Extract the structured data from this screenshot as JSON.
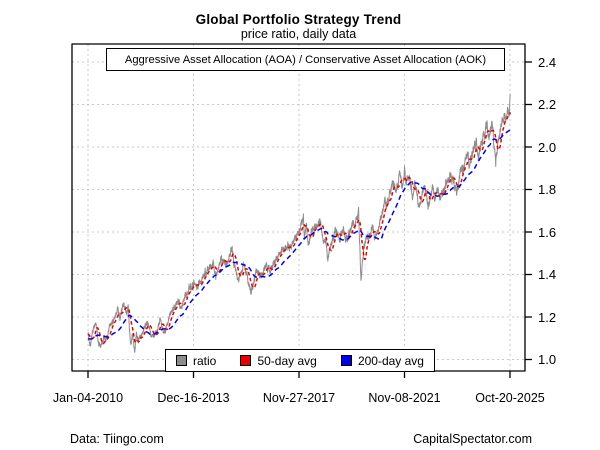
{
  "title": "Global Portfolio Strategy Trend",
  "subtitle": "price ratio, daily data",
  "series_label": "Aggressive Asset Allocation (AOA) / Conservative Asset Allocation (AOK)",
  "footer": {
    "left": "Data: Tiingo.com",
    "right": "CapitalSpectator.com"
  },
  "legend": [
    {
      "label": "ratio",
      "color": "#8c8c8c"
    },
    {
      "label": "50-day avg",
      "color": "#e60000"
    },
    {
      "label": "200-day avg",
      "color": "#0000e6"
    }
  ],
  "chart_data": {
    "type": "line",
    "title": "Global Portfolio Strategy Trend",
    "subtitle": "price ratio, daily data",
    "annotation": "Aggressive Asset Allocation (AOA) / Conservative Asset Allocation (AOK)",
    "grid": true,
    "grid_color": "#c9c9c9",
    "legend_position": "bottom",
    "x_ticks": [
      "Jan-04-2010",
      "Dec-16-2013",
      "Nov-27-2017",
      "Nov-08-2021",
      "Oct-20-2025"
    ],
    "y_ticks": [
      1.0,
      1.2,
      1.4,
      1.6,
      1.8,
      2.0,
      2.2,
      2.4
    ],
    "ylim": [
      0.93,
      2.47
    ],
    "series": [
      {
        "name": "ratio",
        "color": "#8c8c8c",
        "style": "solid-noisy",
        "anchors": [
          [
            "2010-01-04",
            1.12
          ],
          [
            "2010-01-20",
            1.09
          ],
          [
            "2010-02-08",
            1.07
          ],
          [
            "2010-03-15",
            1.13
          ],
          [
            "2010-04-23",
            1.17
          ],
          [
            "2010-05-20",
            1.09
          ],
          [
            "2010-07-02",
            1.06
          ],
          [
            "2010-08-09",
            1.11
          ],
          [
            "2010-08-31",
            1.08
          ],
          [
            "2010-11-05",
            1.17
          ],
          [
            "2010-12-31",
            1.19
          ],
          [
            "2011-02-18",
            1.24
          ],
          [
            "2011-03-16",
            1.19
          ],
          [
            "2011-04-29",
            1.26
          ],
          [
            "2011-06-15",
            1.22
          ],
          [
            "2011-07-07",
            1.24
          ],
          [
            "2011-08-08",
            1.07
          ],
          [
            "2011-08-31",
            1.12
          ],
          [
            "2011-10-03",
            1.04
          ],
          [
            "2011-10-28",
            1.13
          ],
          [
            "2011-11-25",
            1.08
          ],
          [
            "2012-03-26",
            1.18
          ],
          [
            "2012-06-04",
            1.1
          ],
          [
            "2012-09-14",
            1.18
          ],
          [
            "2012-11-15",
            1.13
          ],
          [
            "2013-01-25",
            1.21
          ],
          [
            "2013-05-21",
            1.28
          ],
          [
            "2013-06-24",
            1.24
          ],
          [
            "2013-09-18",
            1.31
          ],
          [
            "2013-12-16",
            1.36
          ],
          [
            "2014-01-31",
            1.34
          ],
          [
            "2014-06-20",
            1.42
          ],
          [
            "2014-09-18",
            1.45
          ],
          [
            "2014-10-15",
            1.39
          ],
          [
            "2014-12-29",
            1.47
          ],
          [
            "2015-03-10",
            1.44
          ],
          [
            "2015-05-21",
            1.51
          ],
          [
            "2015-08-25",
            1.37
          ],
          [
            "2015-11-03",
            1.45
          ],
          [
            "2016-01-20",
            1.34
          ],
          [
            "2016-02-11",
            1.32
          ],
          [
            "2016-04-20",
            1.42
          ],
          [
            "2016-06-27",
            1.38
          ],
          [
            "2016-09-07",
            1.45
          ],
          [
            "2016-11-03",
            1.42
          ],
          [
            "2016-12-13",
            1.46
          ],
          [
            "2017-03-01",
            1.5
          ],
          [
            "2017-06-02",
            1.53
          ],
          [
            "2017-08-17",
            1.54
          ],
          [
            "2017-11-27",
            1.6
          ],
          [
            "2018-01-26",
            1.67
          ],
          [
            "2018-02-08",
            1.57
          ],
          [
            "2018-03-09",
            1.62
          ],
          [
            "2018-04-02",
            1.56
          ],
          [
            "2018-06-12",
            1.62
          ],
          [
            "2018-09-20",
            1.64
          ],
          [
            "2018-10-29",
            1.53
          ],
          [
            "2018-11-28",
            1.58
          ],
          [
            "2018-12-24",
            1.46
          ],
          [
            "2019-02-25",
            1.57
          ],
          [
            "2019-04-30",
            1.61
          ],
          [
            "2019-06-03",
            1.55
          ],
          [
            "2019-07-26",
            1.62
          ],
          [
            "2019-08-14",
            1.57
          ],
          [
            "2019-10-01",
            1.58
          ],
          [
            "2019-12-27",
            1.65
          ],
          [
            "2020-02-19",
            1.68
          ],
          [
            "2020-03-23",
            1.38
          ],
          [
            "2020-04-29",
            1.52
          ],
          [
            "2020-06-08",
            1.58
          ],
          [
            "2020-07-20",
            1.57
          ],
          [
            "2020-09-02",
            1.62
          ],
          [
            "2020-09-23",
            1.57
          ],
          [
            "2020-10-30",
            1.59
          ],
          [
            "2020-12-31",
            1.68
          ],
          [
            "2021-02-12",
            1.74
          ],
          [
            "2021-03-04",
            1.7
          ],
          [
            "2021-04-16",
            1.78
          ],
          [
            "2021-06-25",
            1.83
          ],
          [
            "2021-07-19",
            1.79
          ],
          [
            "2021-09-02",
            1.87
          ],
          [
            "2021-10-04",
            1.81
          ],
          [
            "2021-11-08",
            1.88
          ],
          [
            "2021-12-03",
            1.82
          ],
          [
            "2022-01-03",
            1.87
          ],
          [
            "2022-03-08",
            1.76
          ],
          [
            "2022-03-29",
            1.83
          ],
          [
            "2022-05-19",
            1.73
          ],
          [
            "2022-06-16",
            1.74
          ],
          [
            "2022-08-16",
            1.81
          ],
          [
            "2022-09-30",
            1.72
          ],
          [
            "2022-12-01",
            1.81
          ],
          [
            "2022-12-28",
            1.76
          ],
          [
            "2023-02-02",
            1.82
          ],
          [
            "2023-03-13",
            1.76
          ],
          [
            "2023-06-15",
            1.84
          ],
          [
            "2023-07-31",
            1.87
          ],
          [
            "2023-10-27",
            1.79
          ],
          [
            "2023-12-14",
            1.89
          ],
          [
            "2024-01-12",
            1.9
          ],
          [
            "2024-03-28",
            1.97
          ],
          [
            "2024-04-19",
            1.92
          ],
          [
            "2024-07-16",
            2.03
          ],
          [
            "2024-08-05",
            1.94
          ],
          [
            "2024-10-18",
            2.05
          ],
          [
            "2024-12-06",
            2.1
          ],
          [
            "2025-01-10",
            2.04
          ],
          [
            "2025-02-19",
            2.11
          ],
          [
            "2025-03-13",
            2.02
          ],
          [
            "2025-04-08",
            1.93
          ],
          [
            "2025-05-16",
            2.05
          ],
          [
            "2025-06-30",
            2.11
          ],
          [
            "2025-08-29",
            2.15
          ],
          [
            "2025-10-08",
            2.16
          ],
          [
            "2025-10-24",
            2.2
          ]
        ]
      },
      {
        "name": "50-day avg",
        "color": "#e60000",
        "style": "dashed",
        "derived": "moving_average_50"
      },
      {
        "name": "200-day avg",
        "color": "#0000e6",
        "style": "dashed",
        "derived": "moving_average_200"
      }
    ]
  }
}
